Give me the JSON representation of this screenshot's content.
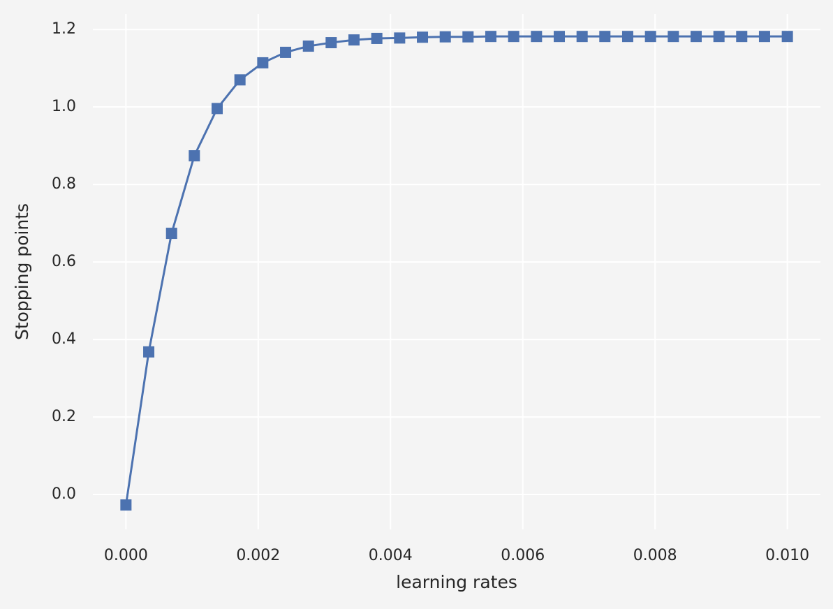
{
  "chart_data": {
    "type": "line",
    "x_label": "learning rates",
    "y_label": "Stopping points",
    "x": [
      0,
      0.000345,
      0.00069,
      0.001034,
      0.001379,
      0.001724,
      0.002069,
      0.002414,
      0.002759,
      0.003103,
      0.003448,
      0.003793,
      0.004138,
      0.004483,
      0.004828,
      0.005172,
      0.005517,
      0.005862,
      0.006207,
      0.006552,
      0.006897,
      0.007241,
      0.007586,
      0.007931,
      0.008276,
      0.008621,
      0.008966,
      0.00931,
      0.009655,
      0.01
    ],
    "series": [
      {
        "color": "#4c72b0",
        "marker": "square",
        "values": [
          -0.027,
          0.368,
          0.674,
          0.874,
          0.996,
          1.07,
          1.114,
          1.141,
          1.157,
          1.166,
          1.173,
          1.177,
          1.178,
          1.18,
          1.181,
          1.181,
          1.182,
          1.182,
          1.182,
          1.182,
          1.182,
          1.182,
          1.182,
          1.182,
          1.182,
          1.182,
          1.182,
          1.182,
          1.182,
          1.182
        ]
      }
    ],
    "xlim": [
      -0.0005,
      0.0105
    ],
    "ylim": [
      -0.09,
      1.24
    ],
    "xticks": [
      {
        "value": 0,
        "label": "0.000"
      },
      {
        "value": 0.002,
        "label": "0.002"
      },
      {
        "value": 0.004,
        "label": "0.004"
      },
      {
        "value": 0.006,
        "label": "0.006"
      },
      {
        "value": 0.008,
        "label": "0.008"
      },
      {
        "value": 0.01,
        "label": "0.010"
      }
    ],
    "yticks": [
      {
        "value": 0,
        "label": "0.0"
      },
      0.2,
      0.4,
      0.6,
      0.8,
      {
        "value": 1,
        "label": "1.0"
      },
      1.2
    ],
    "grid": true
  }
}
